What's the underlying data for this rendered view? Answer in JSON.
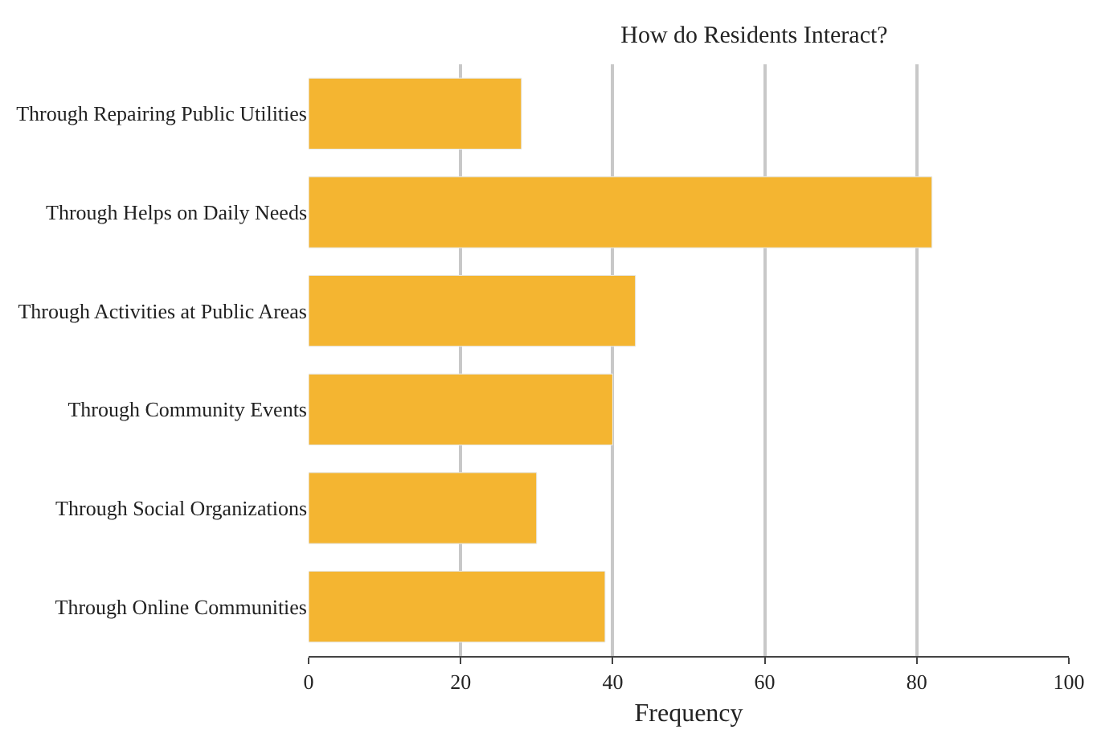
{
  "chart_data": {
    "type": "bar",
    "orientation": "horizontal",
    "title": "How do Residents Interact?",
    "xlabel": "Frequency",
    "categories": [
      "Through Repairing Public Utilities",
      "Through Helps on Daily Needs",
      "Through Activities at Public Areas",
      "Through Community Events",
      "Through Social Organizations",
      "Through Online Communities"
    ],
    "values": [
      28,
      82,
      43,
      40,
      30,
      39
    ],
    "color": "#f4b531",
    "xlim": [
      0,
      100
    ],
    "xticks": [
      0,
      20,
      40,
      60,
      80,
      100
    ],
    "grid": "x"
  }
}
